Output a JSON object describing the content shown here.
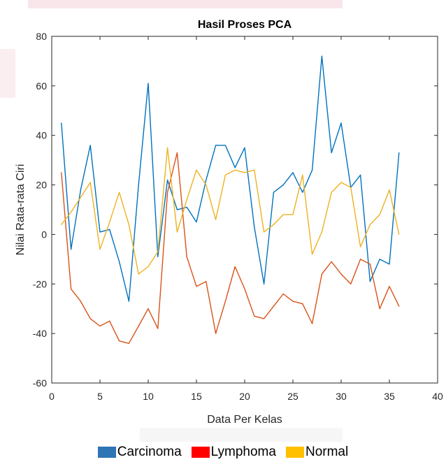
{
  "chart_data": {
    "type": "line",
    "title": "Hasil Proses PCA",
    "xlabel": "Data Per Kelas",
    "ylabel": "Nilai Rata-rata Ciri",
    "xlim": [
      0,
      40
    ],
    "ylim": [
      -60,
      80
    ],
    "xticks": [
      "0",
      "5",
      "10",
      "15",
      "20",
      "25",
      "30",
      "35",
      "40"
    ],
    "yticks": [
      "-60",
      "-40",
      "-20",
      "0",
      "20",
      "40",
      "60",
      "80"
    ],
    "grid": false,
    "legend_position": "bottom",
    "x": [
      1,
      2,
      3,
      4,
      5,
      6,
      7,
      8,
      9,
      10,
      11,
      12,
      13,
      14,
      15,
      16,
      17,
      18,
      19,
      20,
      21,
      22,
      23,
      24,
      25,
      26,
      27,
      28,
      29,
      30,
      31,
      32,
      33,
      34,
      35,
      36
    ],
    "series": [
      {
        "name": "Carcinoma",
        "color": "#0072bd",
        "legend_color": "#2e75b6",
        "values": [
          45,
          -6,
          18,
          36,
          1,
          2,
          -11,
          -27,
          20,
          61,
          -9,
          22,
          10,
          11,
          5,
          22,
          36,
          36,
          27,
          35,
          3,
          -20,
          17,
          20,
          25,
          17,
          26,
          72,
          33,
          45,
          19,
          24,
          -19,
          -10,
          -12,
          33
        ]
      },
      {
        "name": "Lymphoma",
        "color": "#d95319",
        "legend_color": "#ff0000",
        "values": [
          25,
          -22,
          -27,
          -34,
          -37,
          -35,
          -43,
          -44,
          -37,
          -30,
          -38,
          17,
          33,
          -9,
          -21,
          -19,
          -40,
          -27,
          -13,
          -22,
          -33,
          -34,
          -29,
          -24,
          -27,
          -28,
          -36,
          -16,
          -11,
          -16,
          -20,
          -10,
          -12,
          -30,
          -21,
          -29
        ]
      },
      {
        "name": "Normal",
        "color": "#edb120",
        "legend_color": "#ffc000",
        "values": [
          4,
          9,
          15,
          21,
          -6,
          5,
          17,
          4,
          -16,
          -13,
          -7,
          35,
          1,
          14,
          26,
          20,
          6,
          24,
          26,
          25,
          26,
          1,
          4,
          8,
          8,
          24,
          -8,
          1,
          17,
          21,
          19,
          -5,
          4,
          8,
          18,
          0
        ]
      }
    ]
  }
}
